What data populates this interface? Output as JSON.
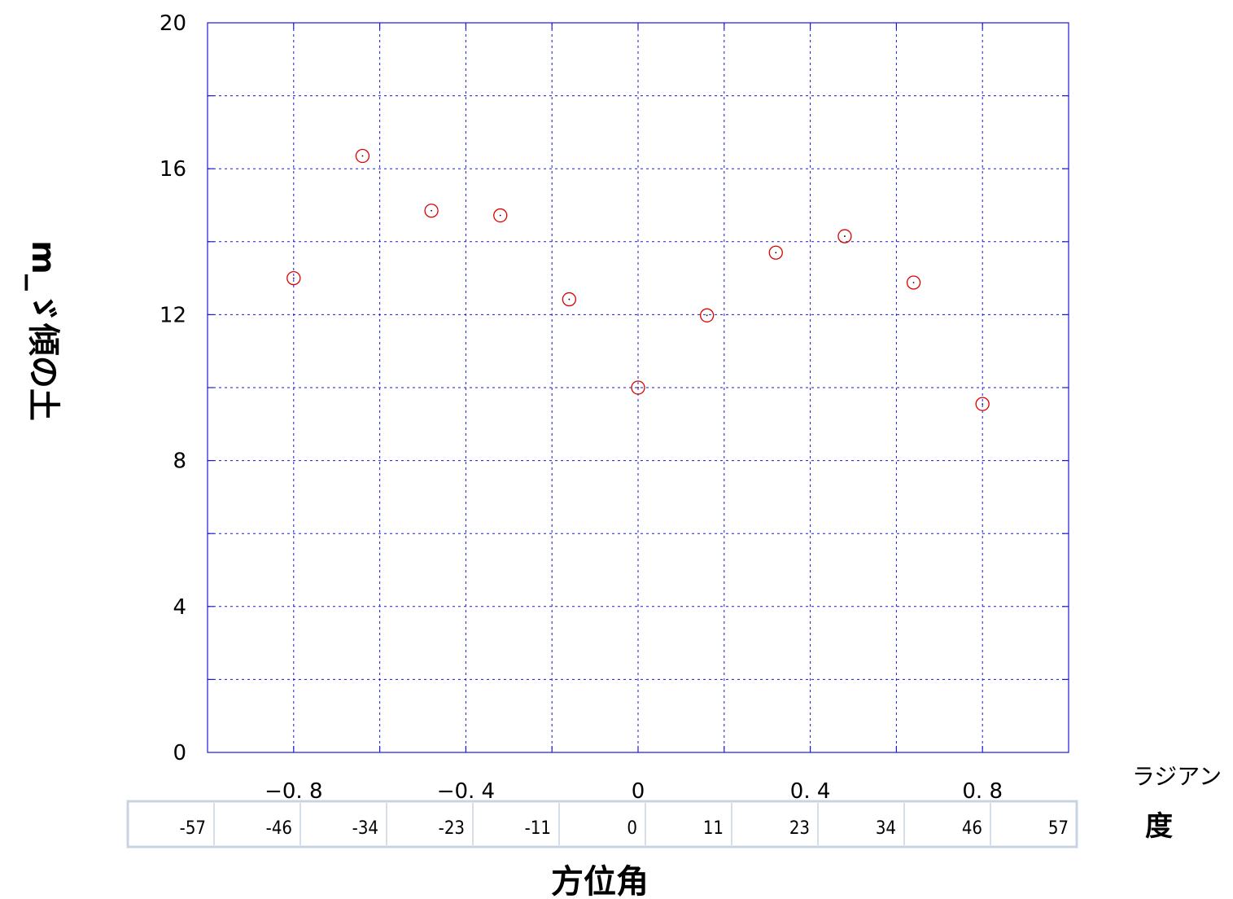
{
  "chart_data": {
    "type": "scatter",
    "title": "",
    "xlabel": "方位角",
    "ylabel": "m_ゞ傾の土",
    "x_unit_label": "ラジアン",
    "deg_unit_label": "度",
    "xlim": [
      -1.0,
      1.0
    ],
    "ylim": [
      0,
      20
    ],
    "x_ticks": [
      -0.8,
      -0.4,
      0,
      0.4,
      0.8
    ],
    "x_tick_labels": [
      "−0. 8",
      "−0. 4",
      "0",
      "0. 4",
      "0. 8"
    ],
    "y_ticks": [
      0,
      4,
      8,
      12,
      16,
      20
    ],
    "y_tick_labels": [
      "0",
      "4",
      "8",
      "12",
      "16",
      "20"
    ],
    "degree_labels": [
      "-57",
      "-46",
      "-34",
      "-23",
      "-11",
      "0",
      "11",
      "23",
      "34",
      "46",
      "57"
    ],
    "grid": true,
    "series": [
      {
        "marker": "open-circle",
        "color": "#dd0000",
        "points": [
          {
            "x": -0.8,
            "y": 13.0
          },
          {
            "x": -0.64,
            "y": 16.35
          },
          {
            "x": -0.48,
            "y": 14.85
          },
          {
            "x": -0.32,
            "y": 14.72
          },
          {
            "x": -0.16,
            "y": 12.42
          },
          {
            "x": 0.0,
            "y": 10.0
          },
          {
            "x": 0.16,
            "y": 11.98
          },
          {
            "x": 0.32,
            "y": 13.7
          },
          {
            "x": 0.48,
            "y": 14.15
          },
          {
            "x": 0.64,
            "y": 12.88
          },
          {
            "x": 0.8,
            "y": 9.55
          }
        ]
      }
    ]
  },
  "colors": {
    "grid": "#1a1ad6",
    "axis": "#1a1ad6",
    "marker": "#dd0000",
    "degree_box_border": "#c8d4e0"
  }
}
